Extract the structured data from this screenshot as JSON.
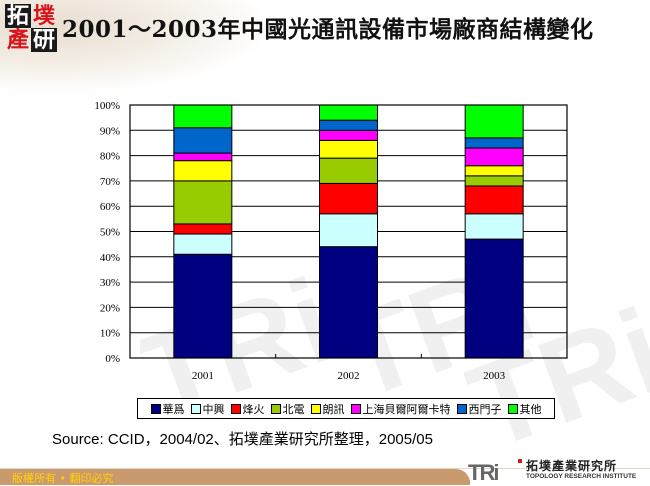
{
  "header": {
    "logo_text": [
      "拓",
      "墣",
      "產",
      "研"
    ],
    "title": "2001～2003年中國光通訊設備市場廠商結構變化"
  },
  "chart_data": {
    "type": "bar",
    "stacked": true,
    "percent": true,
    "title": "2001～2003年中國光通訊設備市場廠商結構變化",
    "categories": [
      "2001",
      "2002",
      "2003"
    ],
    "ylim": [
      0,
      100
    ],
    "yticks": [
      "0%",
      "10%",
      "20%",
      "30%",
      "40%",
      "50%",
      "60%",
      "70%",
      "80%",
      "90%",
      "100%"
    ],
    "grid": true,
    "legend_position": "bottom",
    "series": [
      {
        "name": "華爲",
        "color": "#000080",
        "values": [
          41,
          44,
          47
        ]
      },
      {
        "name": "中興",
        "color": "#ccffff",
        "values": [
          8,
          13,
          10
        ]
      },
      {
        "name": "烽火",
        "color": "#ff0000",
        "values": [
          4,
          12,
          11
        ]
      },
      {
        "name": "北電",
        "color": "#99cc00",
        "values": [
          17,
          10,
          4
        ]
      },
      {
        "name": "朗訊",
        "color": "#ffff00",
        "values": [
          8,
          7,
          4
        ]
      },
      {
        "name": "上海貝爾阿爾卡特",
        "color": "#ff00ff",
        "values": [
          3,
          4,
          7
        ]
      },
      {
        "name": "西門子",
        "color": "#0066cc",
        "values": [
          10,
          4,
          4
        ]
      },
      {
        "name": "其他",
        "color": "#00ff00",
        "values": [
          9,
          6,
          13
        ]
      }
    ]
  },
  "source": "Source: CCID，2004/02、拓墣產業研究所整理，2005/05",
  "footer": {
    "copyright": "版權所有 • 翻印必究",
    "org_logo_mark": "TRi",
    "org_name_cn": "拓墣產業研究所",
    "org_name_en": "TOPOLOGY RESEARCH INSTITUTE"
  }
}
